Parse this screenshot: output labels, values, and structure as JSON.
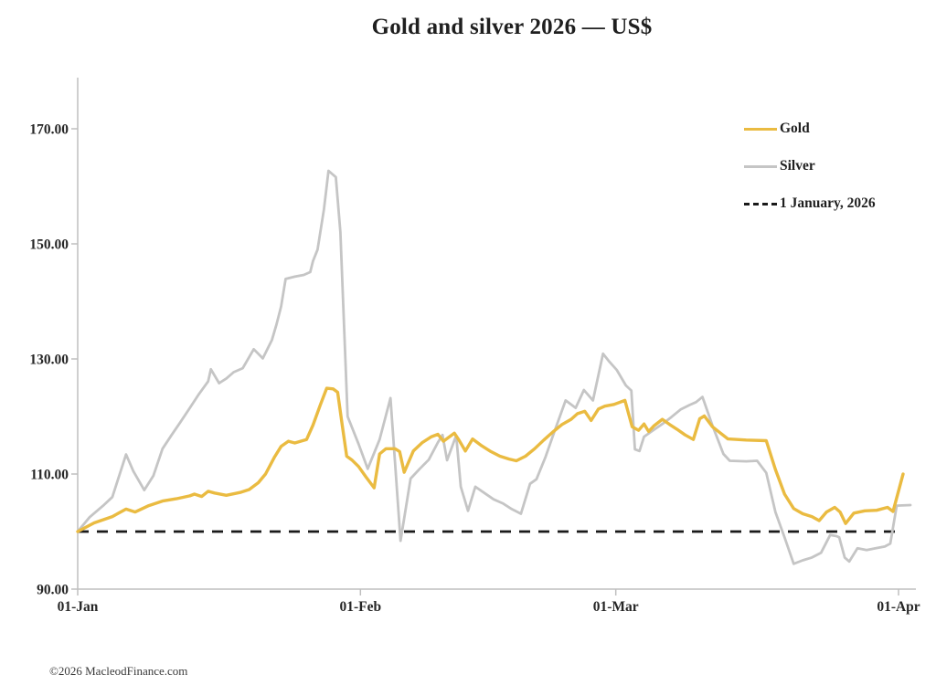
{
  "title": "Gold and silver 2026 — US$",
  "footer": "©2026 MacleodFinance.com",
  "colors": {
    "gold": "#EABB41",
    "silver": "#C5C5C5",
    "baseline": "#1a1a1a",
    "axis": "#BFBFBF",
    "text": "#262626"
  },
  "legend": {
    "position": "top-right",
    "items": [
      {
        "label": "Gold",
        "style": "solid",
        "color": "#EABB41"
      },
      {
        "label": "Silver",
        "style": "solid",
        "color": "#C5C5C5"
      },
      {
        "label": "1 January, 2026",
        "style": "dashed",
        "color": "#1a1a1a"
      }
    ]
  },
  "chart_data": {
    "type": "line",
    "title": "Gold and silver 2026 — US$",
    "xlabel": "",
    "ylabel": "",
    "grid": "off",
    "x_axis": {
      "unit": "days-from-1-Jan-2026",
      "tick_labels": [
        "01-Jan",
        "01-Feb",
        "01-Mar",
        "01-Apr"
      ],
      "tick_days": [
        0,
        31,
        59,
        90
      ],
      "range_days": [
        0,
        90
      ]
    },
    "y_axis": {
      "tick_labels": [
        "90.00",
        "110.00",
        "130.00",
        "150.00",
        "170.00"
      ],
      "tick_values": [
        90,
        110,
        130,
        150,
        170
      ],
      "range": [
        88,
        179
      ]
    },
    "baseline": {
      "label": "1 January, 2026",
      "value": 100,
      "style": "dashed",
      "color": "#1a1a1a"
    },
    "series": [
      {
        "name": "Gold",
        "color": "#EABB41",
        "width": 3.4,
        "points": [
          [
            0,
            100
          ],
          [
            1.8,
            101.5
          ],
          [
            3.8,
            102.6
          ],
          [
            5.3,
            103.9
          ],
          [
            6.3,
            103.4
          ],
          [
            7.8,
            104.5
          ],
          [
            9.3,
            105.3
          ],
          [
            10.8,
            105.7
          ],
          [
            12.3,
            106.2
          ],
          [
            12.8,
            106.5
          ],
          [
            13.6,
            106.1
          ],
          [
            14.3,
            107
          ],
          [
            15,
            106.7
          ],
          [
            16.3,
            106.3
          ],
          [
            17.8,
            106.8
          ],
          [
            18.8,
            107.3
          ],
          [
            19.8,
            108.5
          ],
          [
            20.6,
            110
          ],
          [
            21.6,
            113
          ],
          [
            22.3,
            114.8
          ],
          [
            23.1,
            115.7
          ],
          [
            23.8,
            115.4
          ],
          [
            25.1,
            116
          ],
          [
            25.8,
            118.5
          ],
          [
            26.6,
            122
          ],
          [
            27.3,
            124.9
          ],
          [
            28,
            124.8
          ],
          [
            28.5,
            124.2
          ],
          [
            29,
            118.5
          ],
          [
            29.5,
            113.1
          ],
          [
            30.1,
            112.4
          ],
          [
            30.8,
            111.3
          ],
          [
            31.6,
            109.5
          ],
          [
            32.5,
            107.6
          ],
          [
            33.1,
            113.5
          ],
          [
            33.8,
            114.4
          ],
          [
            34.8,
            114.4
          ],
          [
            35.3,
            113.9
          ],
          [
            35.8,
            110.3
          ],
          [
            36.8,
            114
          ],
          [
            37.8,
            115.5
          ],
          [
            38.8,
            116.5
          ],
          [
            39.5,
            116.9
          ],
          [
            40.1,
            115.7
          ],
          [
            41.3,
            117.1
          ],
          [
            41.8,
            115.9
          ],
          [
            42.5,
            114
          ],
          [
            43.3,
            116.1
          ],
          [
            44.3,
            114.9
          ],
          [
            45.3,
            113.9
          ],
          [
            46.3,
            113.1
          ],
          [
            47.3,
            112.6
          ],
          [
            48.1,
            112.3
          ],
          [
            49.1,
            113.1
          ],
          [
            50.1,
            114.4
          ],
          [
            51.1,
            115.9
          ],
          [
            52.1,
            117.3
          ],
          [
            53.1,
            118.6
          ],
          [
            54.1,
            119.5
          ],
          [
            54.8,
            120.5
          ],
          [
            55.6,
            120.9
          ],
          [
            56.3,
            119.3
          ],
          [
            57.1,
            121.3
          ],
          [
            57.8,
            121.8
          ],
          [
            58.8,
            122.1
          ],
          [
            60,
            122.8
          ],
          [
            60.8,
            118.2
          ],
          [
            61.5,
            117.6
          ],
          [
            62.1,
            118.7
          ],
          [
            62.6,
            117.4
          ],
          [
            63.2,
            118.4
          ],
          [
            64.1,
            119.5
          ],
          [
            64.9,
            118.6
          ],
          [
            65.7,
            117.8
          ],
          [
            66.6,
            116.8
          ],
          [
            67.5,
            116
          ],
          [
            68.2,
            119.6
          ],
          [
            68.7,
            120.1
          ],
          [
            69.6,
            118.2
          ],
          [
            70.4,
            117.2
          ],
          [
            71.3,
            116.1
          ],
          [
            73.3,
            115.9
          ],
          [
            75.5,
            115.8
          ],
          [
            76.5,
            110.8
          ],
          [
            77.5,
            106.5
          ],
          [
            78.5,
            104
          ],
          [
            79.5,
            103.1
          ],
          [
            80.5,
            102.6
          ],
          [
            81.3,
            101.9
          ],
          [
            82.1,
            103.4
          ],
          [
            83,
            104.2
          ],
          [
            83.6,
            103.4
          ],
          [
            84.2,
            101.4
          ],
          [
            85.1,
            103.2
          ],
          [
            86.3,
            103.6
          ],
          [
            87.6,
            103.7
          ],
          [
            88.8,
            104.2
          ],
          [
            89.4,
            103.5
          ],
          [
            90.5,
            110
          ]
        ]
      },
      {
        "name": "Silver",
        "color": "#C5C5C5",
        "width": 2.8,
        "points": [
          [
            0,
            100
          ],
          [
            1.3,
            102.5
          ],
          [
            2.8,
            104.5
          ],
          [
            3.8,
            106
          ],
          [
            5.3,
            113.4
          ],
          [
            6.1,
            110.5
          ],
          [
            7.3,
            107.2
          ],
          [
            8.3,
            109.7
          ],
          [
            9.3,
            114.4
          ],
          [
            10.3,
            116.8
          ],
          [
            11.3,
            119.1
          ],
          [
            12.3,
            121.5
          ],
          [
            13.3,
            123.9
          ],
          [
            14.3,
            126.1
          ],
          [
            14.6,
            128.2
          ],
          [
            15.5,
            125.8
          ],
          [
            16.3,
            126.6
          ],
          [
            17.1,
            127.7
          ],
          [
            18.1,
            128.4
          ],
          [
            19.3,
            131.7
          ],
          [
            20.3,
            130.1
          ],
          [
            21.3,
            133.3
          ],
          [
            21.8,
            136
          ],
          [
            22.3,
            139.1
          ],
          [
            22.8,
            143.9
          ],
          [
            23.8,
            144.3
          ],
          [
            24.8,
            144.6
          ],
          [
            25.5,
            145.1
          ],
          [
            25.8,
            147
          ],
          [
            26.3,
            149
          ],
          [
            27,
            156
          ],
          [
            27.5,
            162.7
          ],
          [
            28.3,
            161.6
          ],
          [
            28.8,
            152
          ],
          [
            29.6,
            120
          ],
          [
            30.8,
            115.2
          ],
          [
            31.8,
            110.9
          ],
          [
            33.1,
            116
          ],
          [
            34.3,
            123.2
          ],
          [
            35.4,
            98.4
          ],
          [
            36.5,
            109.2
          ],
          [
            37.5,
            110.9
          ],
          [
            38.5,
            112.5
          ],
          [
            39.5,
            115.5
          ],
          [
            40,
            116.8
          ],
          [
            40.5,
            112.4
          ],
          [
            41.5,
            116.7
          ],
          [
            42,
            107.8
          ],
          [
            42.8,
            103.6
          ],
          [
            43.6,
            107.8
          ],
          [
            44.6,
            106.7
          ],
          [
            45.6,
            105.6
          ],
          [
            46.6,
            104.9
          ],
          [
            47.6,
            103.9
          ],
          [
            48.6,
            103.1
          ],
          [
            49.6,
            108.3
          ],
          [
            50.3,
            109.1
          ],
          [
            51.3,
            113
          ],
          [
            52.3,
            117.5
          ],
          [
            53.5,
            122.8
          ],
          [
            54.6,
            121.5
          ],
          [
            55.5,
            124.6
          ],
          [
            56.5,
            122.8
          ],
          [
            57.6,
            130.9
          ],
          [
            58.3,
            129.5
          ],
          [
            59.1,
            128.1
          ],
          [
            60.1,
            125.4
          ],
          [
            60.7,
            124.5
          ],
          [
            61.1,
            114.3
          ],
          [
            61.6,
            114
          ],
          [
            62.1,
            116.5
          ],
          [
            63.1,
            117.6
          ],
          [
            64.1,
            118.7
          ],
          [
            65.1,
            119.9
          ],
          [
            66.1,
            121.2
          ],
          [
            67.1,
            122
          ],
          [
            67.8,
            122.5
          ],
          [
            68.5,
            123.4
          ],
          [
            69.6,
            118.4
          ],
          [
            70.8,
            113.5
          ],
          [
            71.5,
            112.3
          ],
          [
            73.3,
            112.2
          ],
          [
            74.5,
            112.3
          ],
          [
            75.5,
            110.2
          ],
          [
            76.5,
            103.4
          ],
          [
            77.5,
            99
          ],
          [
            78.5,
            94.4
          ],
          [
            79.5,
            95
          ],
          [
            80.5,
            95.5
          ],
          [
            81.5,
            96.3
          ],
          [
            82.5,
            99.4
          ],
          [
            83.2,
            99.2
          ],
          [
            83.5,
            99
          ],
          [
            84.1,
            95.5
          ],
          [
            84.6,
            94.8
          ],
          [
            85.5,
            97.1
          ],
          [
            86.5,
            96.8
          ],
          [
            87.5,
            97.1
          ],
          [
            88.5,
            97.4
          ],
          [
            89.1,
            97.9
          ],
          [
            89.8,
            104.5
          ],
          [
            91.3,
            104.6
          ]
        ]
      }
    ]
  }
}
